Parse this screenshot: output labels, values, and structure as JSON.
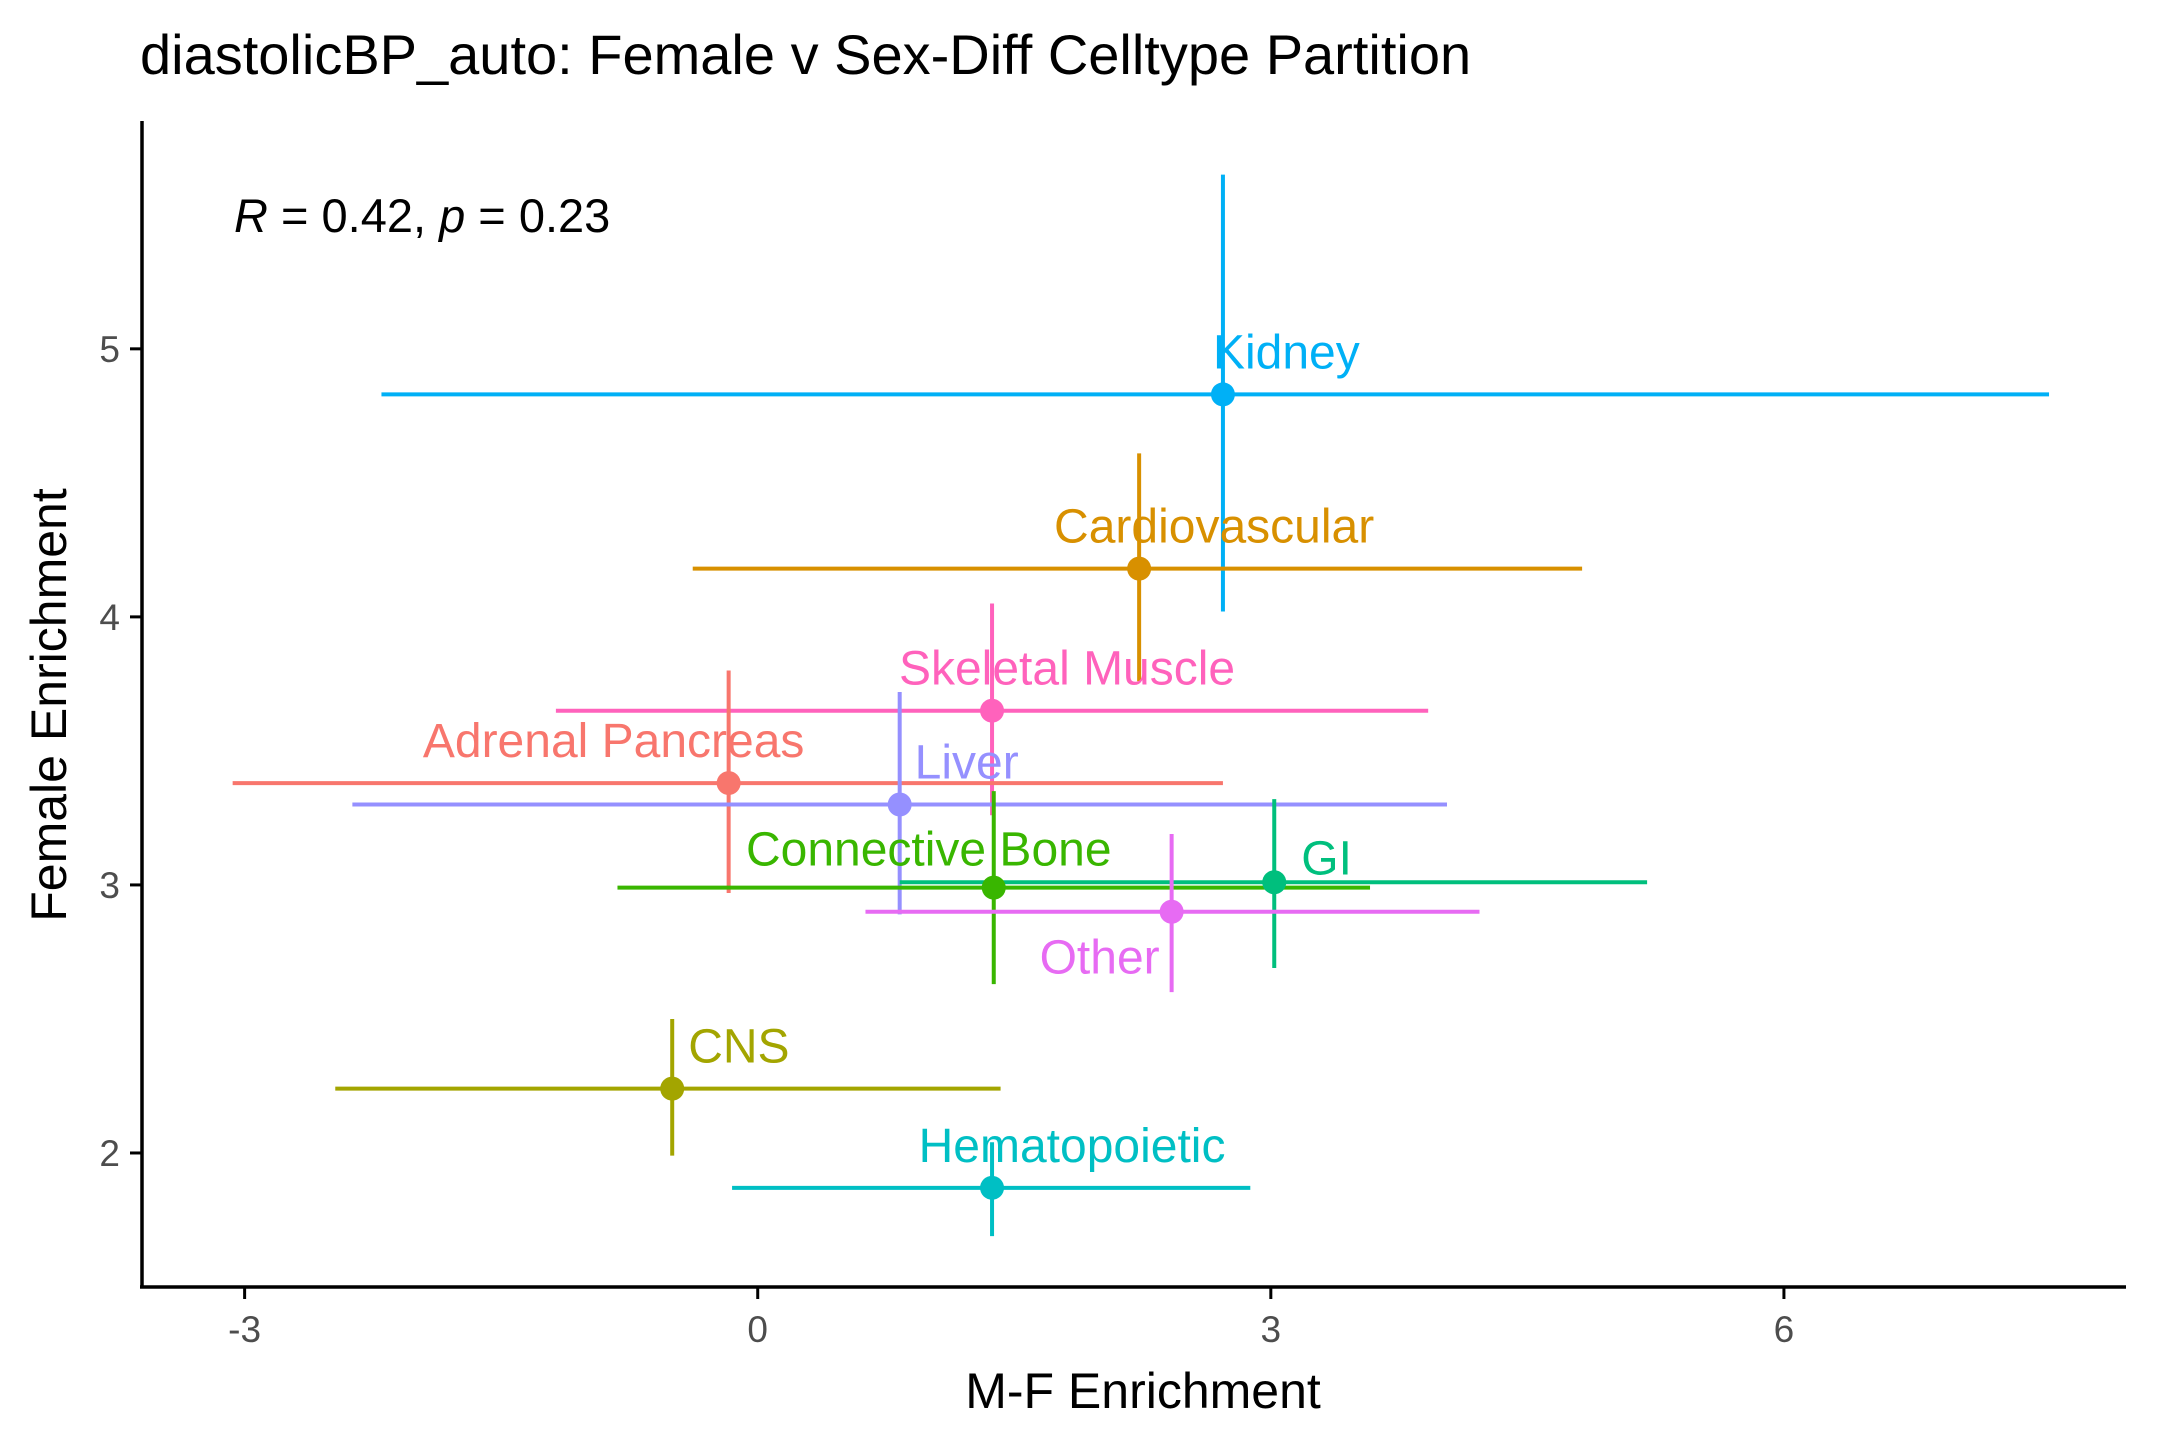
{
  "chart_data": {
    "type": "scatter",
    "title": "diastolicBP_auto: Female v Sex-Diff Celltype Partition",
    "xlabel": "M-F Enrichment",
    "ylabel": "Female Enrichment",
    "xlim": [
      -3.6,
      8.0
    ],
    "ylim": [
      1.5,
      5.85
    ],
    "x_ticks": [
      -3,
      0,
      3,
      6
    ],
    "x_tick_labels": [
      "-3",
      "0",
      "3",
      "6"
    ],
    "y_ticks": [
      2,
      3,
      4,
      5
    ],
    "y_tick_labels": [
      "2",
      "3",
      "4",
      "5"
    ],
    "grid": false,
    "annotation": {
      "r_symbol": "R",
      "r_value": " = 0.42, ",
      "p_symbol": "p",
      "p_value": " = 0.23"
    },
    "points": [
      {
        "label": "Kidney",
        "color": "#00B0F6",
        "x": 2.72,
        "y": 4.83,
        "xmin": -2.2,
        "xmax": 7.55,
        "ymin": 4.02,
        "ymax": 5.65
      },
      {
        "label": "Cardiovascular",
        "color": "#D89000",
        "x": 2.23,
        "y": 4.18,
        "xmin": -0.38,
        "xmax": 4.82,
        "ymin": 3.76,
        "ymax": 4.61
      },
      {
        "label": "Skeletal Muscle",
        "color": "#FF62BC",
        "x": 1.37,
        "y": 3.65,
        "xmin": -1.18,
        "xmax": 3.92,
        "ymin": 3.26,
        "ymax": 4.05
      },
      {
        "label": "Adrenal Pancreas",
        "color": "#F8766D",
        "x": -0.17,
        "y": 3.38,
        "xmin": -3.07,
        "xmax": 2.72,
        "ymin": 2.97,
        "ymax": 3.8
      },
      {
        "label": "Liver",
        "color": "#9590FF",
        "x": 0.83,
        "y": 3.3,
        "xmin": -2.37,
        "xmax": 4.03,
        "ymin": 2.89,
        "ymax": 3.72
      },
      {
        "label": "GI",
        "color": "#00BF7D",
        "x": 3.02,
        "y": 3.01,
        "xmin": 0.83,
        "xmax": 5.2,
        "ymin": 2.69,
        "ymax": 3.32
      },
      {
        "label": "Connective Bone",
        "color": "#39B600",
        "x": 1.38,
        "y": 2.99,
        "xmin": -0.82,
        "xmax": 3.58,
        "ymin": 2.63,
        "ymax": 3.35
      },
      {
        "label": "Other",
        "color": "#E76BF3",
        "x": 2.42,
        "y": 2.9,
        "xmin": 0.63,
        "xmax": 4.22,
        "ymin": 2.6,
        "ymax": 3.19
      },
      {
        "label": "CNS",
        "color": "#A3A500",
        "x": -0.5,
        "y": 2.24,
        "xmin": -2.47,
        "xmax": 1.42,
        "ymin": 1.99,
        "ymax": 2.5
      },
      {
        "label": "Hematopoietic",
        "color": "#00BFC4",
        "x": 1.37,
        "y": 1.87,
        "xmin": -0.15,
        "xmax": 2.88,
        "ymin": 1.69,
        "ymax": 2.04
      }
    ]
  }
}
